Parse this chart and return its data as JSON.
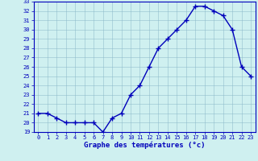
{
  "hours": [
    0,
    1,
    2,
    3,
    4,
    5,
    6,
    7,
    8,
    9,
    10,
    11,
    12,
    13,
    14,
    15,
    16,
    17,
    18,
    19,
    20,
    21,
    22,
    23
  ],
  "temps": [
    21,
    21,
    20.5,
    20,
    20,
    20,
    20,
    19,
    20.5,
    21,
    23,
    24,
    26,
    28,
    29,
    30,
    31,
    32.5,
    32.5,
    32,
    31.5,
    30,
    26,
    25
  ],
  "bg_color": "#cff0f0",
  "line_color": "#0000bb",
  "marker": "+",
  "marker_size": 4,
  "line_width": 1.0,
  "xlabel": "Graphe des températures (°c)",
  "ylim": [
    19,
    33
  ],
  "xlim": [
    -0.5,
    23.5
  ],
  "yticks": [
    19,
    20,
    21,
    22,
    23,
    24,
    25,
    26,
    27,
    28,
    29,
    30,
    31,
    32,
    33
  ],
  "xticks": [
    0,
    1,
    2,
    3,
    4,
    5,
    6,
    7,
    8,
    9,
    10,
    11,
    12,
    13,
    14,
    15,
    16,
    17,
    18,
    19,
    20,
    21,
    22,
    23
  ],
  "grid_color": "#8ab8c8",
  "grid_alpha": 0.7,
  "tick_fontsize": 5,
  "xlabel_fontsize": 6.5,
  "axis_color": "#0000bb",
  "tick_label_color": "#0000bb",
  "xlabel_bold": true
}
